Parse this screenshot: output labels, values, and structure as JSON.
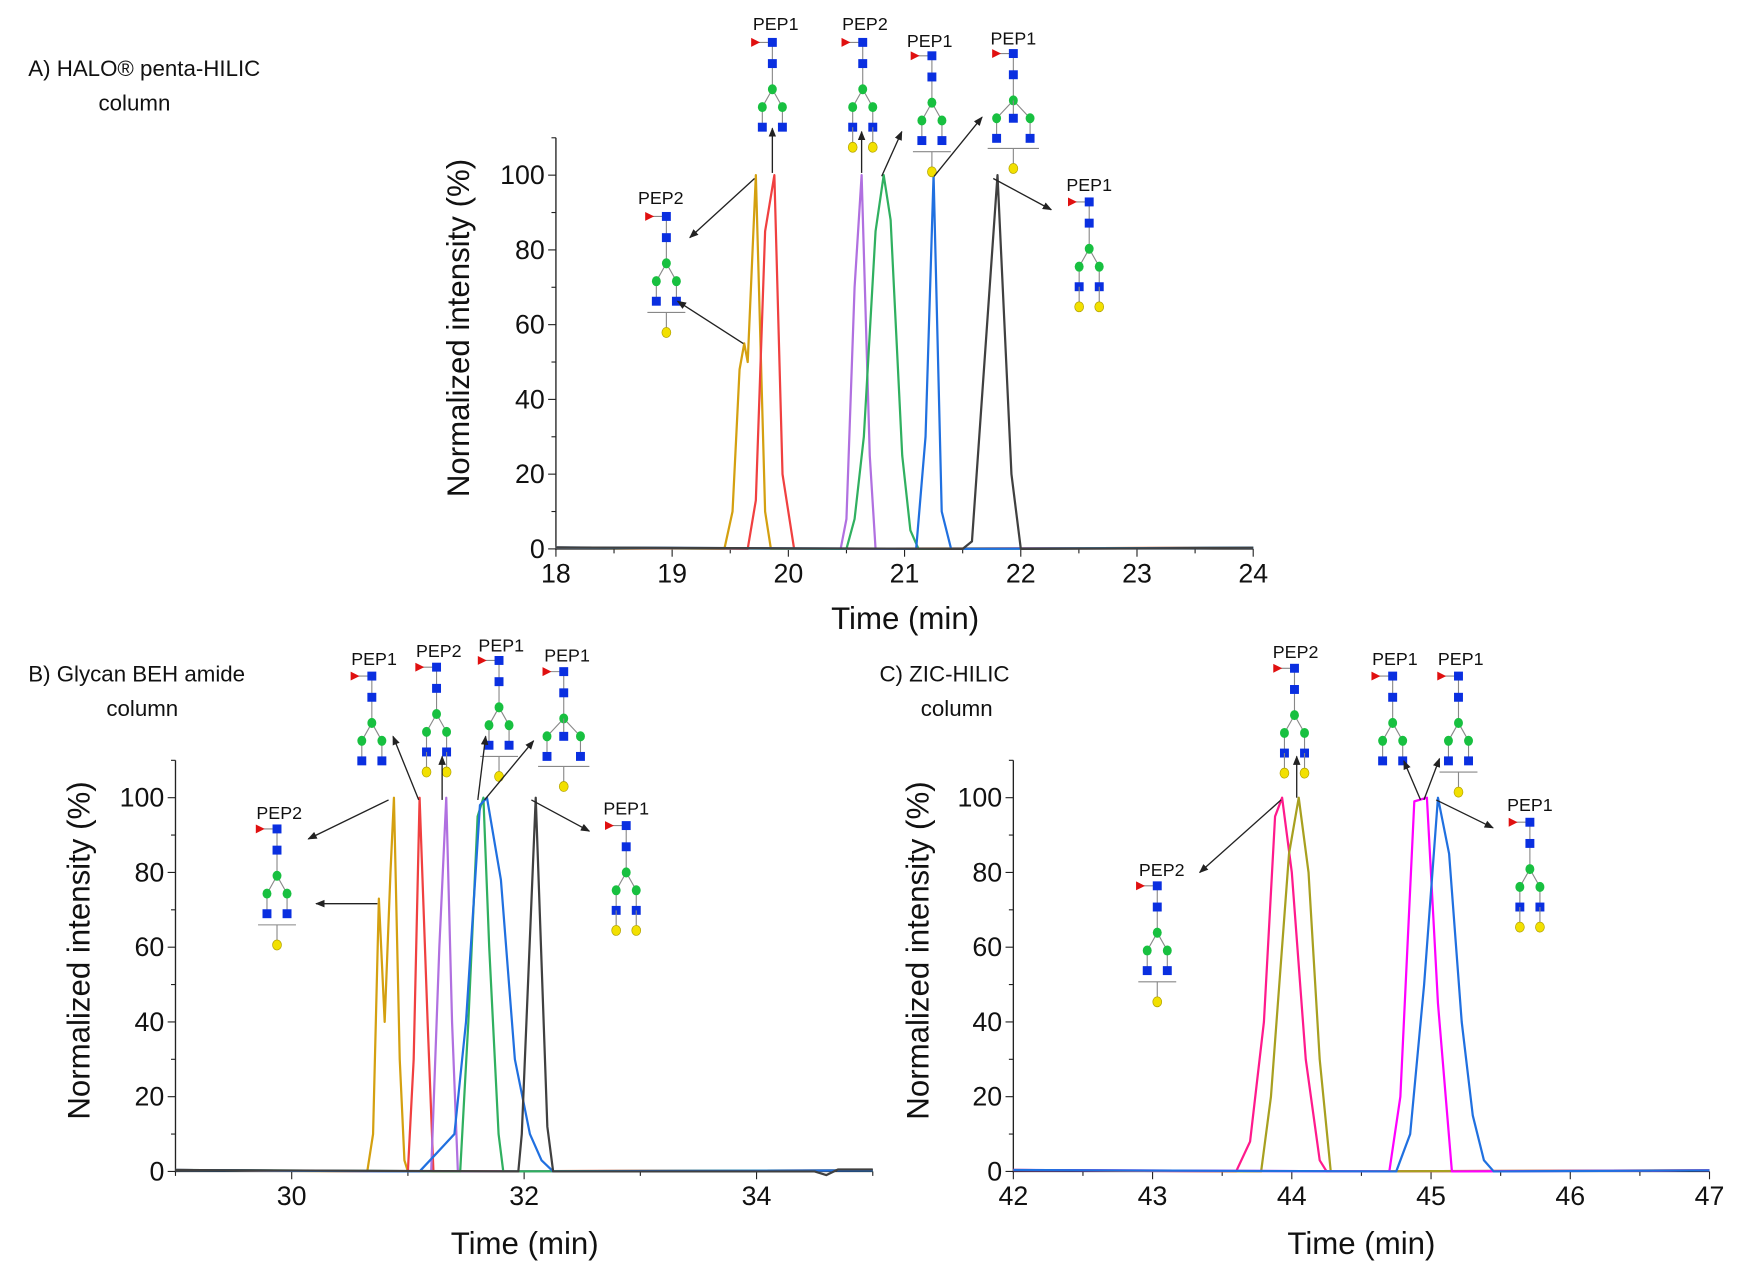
{
  "chart_data": [
    {
      "type": "line",
      "panel_title": [
        "A) HALO® penta-HILIC",
        "column"
      ],
      "xlabel": "Time (min)",
      "ylabel": "Normalized intensity (%)",
      "xlim": [
        18,
        24
      ],
      "ylim": [
        0,
        110
      ],
      "xticks": [
        18,
        19,
        20,
        21,
        22,
        23,
        24
      ],
      "yticks": [
        0,
        20,
        40,
        60,
        80,
        100
      ],
      "series": [
        {
          "color": "#d4a010",
          "x": [
            19.45,
            19.52,
            19.58,
            19.62,
            19.65,
            19.72,
            19.8,
            19.85
          ],
          "y": [
            0,
            10,
            48,
            55,
            50,
            100,
            10,
            0
          ]
        },
        {
          "color": "#f04040",
          "x": [
            19.65,
            19.72,
            19.8,
            19.88,
            19.95,
            20.05
          ],
          "y": [
            0,
            13,
            85,
            100,
            20,
            0
          ]
        },
        {
          "color": "#b070e0",
          "x": [
            20.45,
            20.5,
            20.57,
            20.63,
            20.7,
            20.75
          ],
          "y": [
            0,
            8,
            70,
            100,
            25,
            0
          ]
        },
        {
          "color": "#30b060",
          "x": [
            20.5,
            20.57,
            20.65,
            20.75,
            20.82,
            20.88,
            20.98,
            21.05,
            21.12
          ],
          "y": [
            0,
            8,
            30,
            85,
            100,
            88,
            25,
            5,
            0
          ]
        },
        {
          "color": "#2070e0",
          "x": [
            21.1,
            21.18,
            21.25,
            21.32,
            21.4
          ],
          "y": [
            0,
            30,
            100,
            10,
            0
          ]
        },
        {
          "color": "#404040",
          "x": [
            21.5,
            21.58,
            21.8,
            21.92,
            22.0
          ],
          "y": [
            0,
            2,
            100,
            20,
            0
          ]
        }
      ],
      "annotations": [
        {
          "label": "PEP1"
        },
        {
          "label": "PEP2"
        },
        {
          "label": "PEP1"
        },
        {
          "label": "PEP1"
        },
        {
          "label": "PEP1"
        },
        {
          "label": "PEP2"
        }
      ]
    },
    {
      "type": "line",
      "panel_title": [
        "B) Glycan BEH amide",
        "column"
      ],
      "xlabel": "Time (min)",
      "ylabel": "Normalized intensity (%)",
      "xlim": [
        29,
        35
      ],
      "ylim": [
        0,
        110
      ],
      "xticks": [
        30,
        32,
        34
      ],
      "yticks": [
        0,
        20,
        40,
        60,
        80,
        100
      ],
      "series": [
        {
          "color": "#d4a010",
          "x": [
            30.65,
            30.7,
            30.75,
            30.8,
            30.85,
            30.88,
            30.93,
            30.97,
            31.0
          ],
          "y": [
            0,
            10,
            73,
            40,
            80,
            100,
            30,
            3,
            0
          ]
        },
        {
          "color": "#f04040",
          "x": [
            31.0,
            31.05,
            31.1,
            31.17,
            31.22
          ],
          "y": [
            0,
            30,
            100,
            40,
            0
          ]
        },
        {
          "color": "#b070e0",
          "x": [
            31.2,
            31.27,
            31.33,
            31.38,
            31.43
          ],
          "y": [
            0,
            60,
            100,
            40,
            0
          ]
        },
        {
          "color": "#30b060",
          "x": [
            31.45,
            31.52,
            31.6,
            31.65,
            31.7,
            31.78,
            31.82
          ],
          "y": [
            0,
            40,
            95,
            100,
            60,
            10,
            0
          ]
        },
        {
          "color": "#2070e0",
          "x": [
            31.1,
            31.25,
            31.4,
            31.5,
            31.62,
            31.68,
            31.8,
            31.92,
            32.05,
            32.15,
            32.25
          ],
          "y": [
            0,
            5,
            10,
            40,
            98,
            100,
            78,
            30,
            10,
            3,
            0
          ]
        },
        {
          "color": "#404040",
          "x": [
            31.95,
            31.98,
            32.1,
            32.2,
            32.25,
            34.5,
            34.6,
            34.7,
            35.0
          ],
          "y": [
            0,
            10,
            100,
            12,
            0,
            0,
            -1,
            0.5,
            0.5
          ]
        }
      ],
      "annotations": [
        {
          "label": "PEP2"
        },
        {
          "label": "PEP1"
        },
        {
          "label": "PEP2"
        },
        {
          "label": "PEP1"
        },
        {
          "label": "PEP1"
        },
        {
          "label": "PEP1"
        }
      ]
    },
    {
      "type": "line",
      "panel_title": [
        "C) ZIC-HILIC",
        "column"
      ],
      "xlabel": "Time (min)",
      "ylabel": "Normalized intensity (%)",
      "xlim": [
        42,
        47
      ],
      "ylim": [
        0,
        110
      ],
      "xticks": [
        42,
        43,
        44,
        45,
        46,
        47
      ],
      "yticks": [
        0,
        20,
        40,
        60,
        80,
        100
      ],
      "series": [
        {
          "color": "#ff1a8c",
          "x": [
            43.6,
            43.7,
            43.8,
            43.88,
            43.93,
            44.0,
            44.1,
            44.2,
            44.25
          ],
          "y": [
            0,
            8,
            40,
            95,
            100,
            80,
            30,
            3,
            0
          ]
        },
        {
          "color": "#a8a020",
          "x": [
            43.78,
            43.85,
            43.98,
            44.05,
            44.12,
            44.2,
            44.28
          ],
          "y": [
            0,
            20,
            85,
            100,
            80,
            30,
            0
          ]
        },
        {
          "color": "#ff00ff",
          "x": [
            44.7,
            44.78,
            44.88,
            44.97,
            45.05,
            45.15
          ],
          "y": [
            0,
            20,
            99,
            100,
            45,
            0
          ]
        },
        {
          "color": "#2070e0",
          "x": [
            44.75,
            44.85,
            44.95,
            45.05,
            45.13,
            45.22,
            45.3,
            45.38,
            45.45
          ],
          "y": [
            0,
            10,
            50,
            100,
            85,
            40,
            15,
            3,
            0
          ]
        }
      ],
      "annotations": [
        {
          "label": "PEP2"
        },
        {
          "label": "PEP2"
        },
        {
          "label": "PEP1"
        },
        {
          "label": "PEP1"
        },
        {
          "label": "PEP1"
        }
      ]
    }
  ]
}
